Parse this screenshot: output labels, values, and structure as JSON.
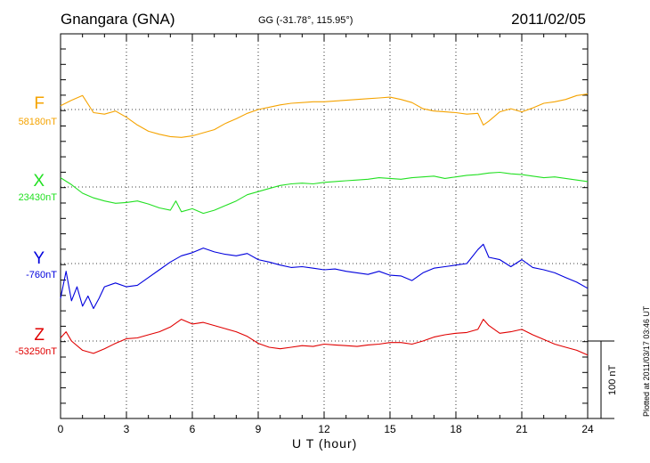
{
  "header": {
    "station": "Gnangara (GNA)",
    "coords": "GG (-31.78°, 115.95°)",
    "date": "2011/02/05"
  },
  "footer": {
    "plotted": "Plotted at 2011/03/17 03:46 UT"
  },
  "chart_data": {
    "type": "line",
    "xlabel": "U T (hour)",
    "xlim": [
      0,
      24
    ],
    "xticks": [
      "0",
      "3",
      "6",
      "9",
      "12",
      "15",
      "18",
      "21",
      "24"
    ],
    "grid": true,
    "scale_bar": {
      "value": 100,
      "label": "100 nT"
    },
    "series": [
      {
        "name": "F",
        "baseline_label": "58180nT",
        "color": "#f5a300",
        "x": [
          0,
          0.5,
          1,
          1.5,
          2,
          2.5,
          3,
          3.5,
          4,
          4.5,
          5,
          5.5,
          6,
          6.5,
          7,
          7.5,
          8,
          8.5,
          9,
          9.5,
          10,
          10.5,
          11,
          11.5,
          12,
          12.5,
          13,
          13.5,
          14,
          14.5,
          15,
          15.5,
          16,
          16.5,
          17,
          17.5,
          18,
          18.5,
          19,
          19.25,
          19.5,
          20,
          20.5,
          21,
          21.5,
          22,
          22.5,
          23,
          23.5,
          24
        ],
        "y": [
          5,
          12,
          18,
          -4,
          -6,
          -2,
          -10,
          -20,
          -28,
          -32,
          -35,
          -36,
          -34,
          -30,
          -26,
          -18,
          -12,
          -5,
          0,
          3,
          6,
          8,
          9,
          10,
          10,
          11,
          12,
          13,
          14,
          15,
          16,
          13,
          9,
          1,
          -2,
          -3,
          -4,
          -6,
          -5,
          -20,
          -15,
          -3,
          1,
          -3,
          2,
          8,
          10,
          13,
          18,
          20
        ]
      },
      {
        "name": "X",
        "baseline_label": "23430nT",
        "color": "#22e022",
        "x": [
          0,
          0.5,
          1,
          1.5,
          2,
          2.5,
          3,
          3.5,
          4,
          4.5,
          5,
          5.25,
          5.5,
          6,
          6.5,
          7,
          7.5,
          8,
          8.5,
          9,
          9.5,
          10,
          10.5,
          11,
          11.5,
          12,
          12.5,
          13,
          13.5,
          14,
          14.5,
          15,
          15.5,
          16,
          16.5,
          17,
          17.5,
          18,
          18.5,
          19,
          19.5,
          20,
          20.5,
          21,
          21.5,
          22,
          22.5,
          23,
          23.5,
          24
        ],
        "y": [
          12,
          3,
          -8,
          -14,
          -18,
          -21,
          -20,
          -18,
          -22,
          -27,
          -30,
          -18,
          -32,
          -28,
          -34,
          -30,
          -24,
          -18,
          -10,
          -6,
          -2,
          2,
          4,
          5,
          4,
          6,
          7,
          8,
          9,
          10,
          12,
          11,
          10,
          12,
          13,
          14,
          11,
          13,
          15,
          16,
          18,
          19,
          17,
          16,
          14,
          12,
          13,
          11,
          9,
          7
        ]
      },
      {
        "name": "Y",
        "baseline_label": "-760nT",
        "color": "#0000dd",
        "x": [
          0,
          0.25,
          0.5,
          0.75,
          1,
          1.25,
          1.5,
          1.75,
          2,
          2.5,
          3,
          3.5,
          4,
          4.5,
          5,
          5.5,
          6,
          6.5,
          7,
          7.5,
          8,
          8.5,
          9,
          9.5,
          10,
          10.5,
          11,
          11.5,
          12,
          12.5,
          13,
          13.5,
          14,
          14.5,
          15,
          15.5,
          16,
          16.5,
          17,
          17.5,
          18,
          18.5,
          19,
          19.25,
          19.5,
          20,
          20.5,
          21,
          21.5,
          22,
          22.5,
          23,
          23.5,
          24
        ],
        "y": [
          -45,
          -10,
          -48,
          -30,
          -55,
          -42,
          -58,
          -45,
          -30,
          -25,
          -30,
          -28,
          -18,
          -8,
          2,
          10,
          14,
          20,
          15,
          12,
          10,
          13,
          5,
          2,
          -2,
          -5,
          -4,
          -6,
          -8,
          -7,
          -10,
          -12,
          -14,
          -10,
          -15,
          -16,
          -22,
          -12,
          -6,
          -4,
          -2,
          0,
          18,
          25,
          8,
          5,
          -4,
          5,
          -5,
          -8,
          -12,
          -18,
          -24,
          -32
        ]
      },
      {
        "name": "Z",
        "baseline_label": "-53250nT",
        "color": "#e00000",
        "x": [
          0,
          0.25,
          0.5,
          1,
          1.5,
          2,
          2.5,
          3,
          3.5,
          4,
          4.5,
          5,
          5.5,
          6,
          6.5,
          7,
          7.5,
          8,
          8.5,
          9,
          9.5,
          10,
          10.5,
          11,
          11.5,
          12,
          12.5,
          13,
          13.5,
          14,
          14.5,
          15,
          15.5,
          16,
          16.5,
          17,
          17.5,
          18,
          18.5,
          19,
          19.25,
          19.5,
          20,
          20.5,
          21,
          21.5,
          22,
          22.5,
          23,
          23.5,
          24
        ],
        "y": [
          4,
          12,
          0,
          -12,
          -16,
          -10,
          -3,
          3,
          4,
          8,
          12,
          18,
          28,
          22,
          24,
          20,
          16,
          12,
          6,
          -3,
          -8,
          -10,
          -8,
          -6,
          -7,
          -4,
          -5,
          -6,
          -7,
          -5,
          -4,
          -2,
          -2,
          -4,
          0,
          5,
          8,
          10,
          11,
          15,
          28,
          20,
          10,
          12,
          15,
          8,
          2,
          -4,
          -8,
          -12,
          -18
        ]
      }
    ]
  }
}
